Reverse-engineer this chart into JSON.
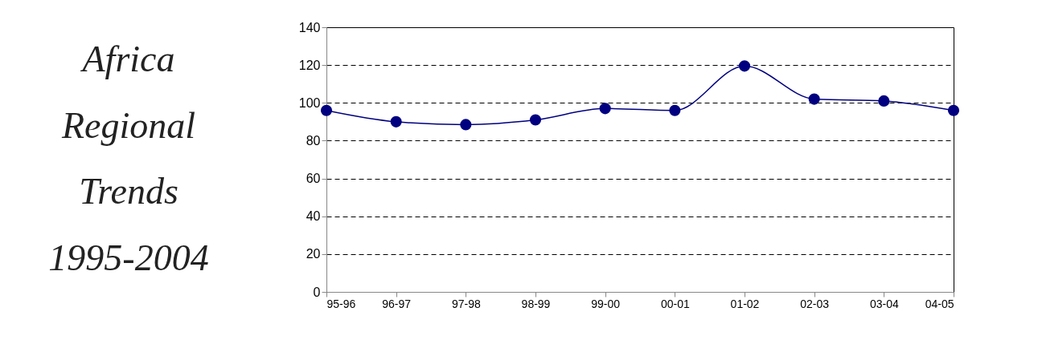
{
  "chart_data": {
    "type": "line",
    "title": "Africa Regional Trends 1995-2004",
    "categories": [
      "95-96",
      "96-97",
      "97-98",
      "98-99",
      "99-00",
      "00-01",
      "01-02",
      "02-03",
      "03-04",
      "04-05"
    ],
    "series": [
      {
        "color": "#000080",
        "values": [
          96,
          90,
          88.5,
          91,
          97,
          96,
          119.5,
          102,
          101,
          96
        ]
      }
    ],
    "ylim": [
      0,
      140
    ],
    "yticks": [
      0,
      20,
      40,
      60,
      80,
      100,
      120,
      140
    ],
    "grid": "y",
    "marker": "circle",
    "line_style": "solid",
    "legend": false
  }
}
